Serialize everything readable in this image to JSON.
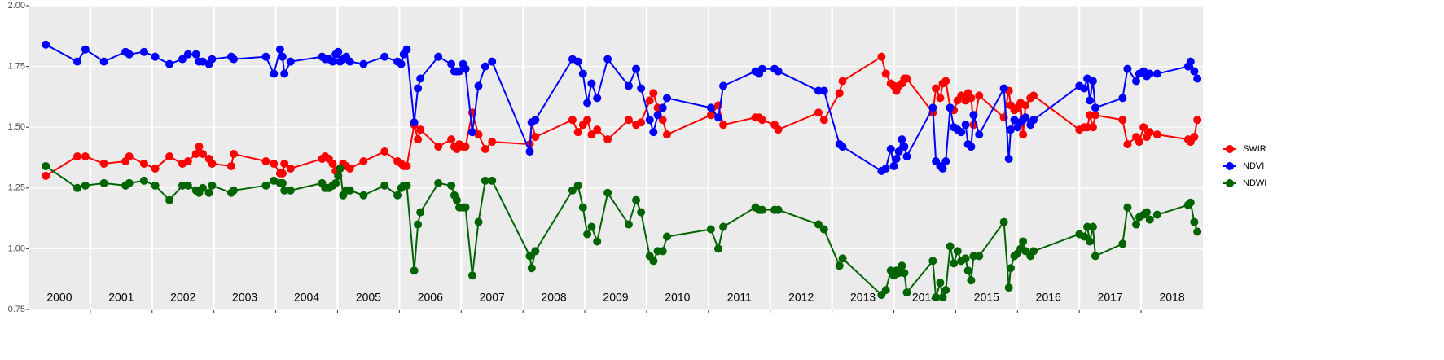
{
  "chart_data": {
    "type": "line",
    "x": [
      2000.28,
      2000.79,
      2000.92,
      2001.22,
      2001.57,
      2001.63,
      2001.87,
      2002.05,
      2002.28,
      2002.49,
      2002.58,
      2002.71,
      2002.76,
      2002.82,
      2002.92,
      2002.97,
      2003.28,
      2003.32,
      2003.84,
      2003.97,
      2004.07,
      2004.11,
      2004.14,
      2004.24,
      2004.75,
      2004.8,
      2004.86,
      2004.92,
      2004.97,
      2005.01,
      2005.04,
      2005.09,
      2005.14,
      2005.2,
      2005.42,
      2005.76,
      2005.97,
      2006.03,
      2006.07,
      2006.12,
      2006.24,
      2006.3,
      2006.34,
      2006.63,
      2006.84,
      2006.89,
      2006.93,
      2006.97,
      2007.03,
      2007.07,
      2007.18,
      2007.28,
      2007.39,
      2007.5,
      2008.11,
      2008.14,
      2008.2,
      2008.8,
      2008.89,
      2008.97,
      2009.04,
      2009.11,
      2009.2,
      2009.37,
      2009.71,
      2009.83,
      2009.91,
      2010.05,
      2010.11,
      2010.18,
      2010.26,
      2010.33,
      2011.04,
      2011.16,
      2011.24,
      2011.76,
      2011.82,
      2011.87,
      2012.07,
      2012.13,
      2012.78,
      2012.87,
      2013.12,
      2013.17,
      2013.8,
      2013.87,
      2013.95,
      2014.0,
      2014.04,
      2014.08,
      2014.13,
      2014.17,
      2014.21,
      2014.63,
      2014.68,
      2014.75,
      2014.79,
      2014.84,
      2014.91,
      2014.97,
      2015.03,
      2015.09,
      2015.16,
      2015.2,
      2015.25,
      2015.29,
      2015.38,
      2015.78,
      2015.86,
      2015.89,
      2015.95,
      2016.0,
      2016.05,
      2016.09,
      2016.13,
      2016.21,
      2016.26,
      2017.0,
      2017.08,
      2017.13,
      2017.17,
      2017.22,
      2017.26,
      2017.7,
      2017.78,
      2017.92,
      2017.97,
      2018.04,
      2018.09,
      2018.14,
      2018.26,
      2018.76,
      2018.8,
      2018.86,
      2018.91
    ],
    "series": [
      {
        "name": "SWIR",
        "color": "#ff0000",
        "values": [
          1.3,
          1.38,
          1.38,
          1.35,
          1.36,
          1.38,
          1.35,
          1.33,
          1.38,
          1.35,
          1.36,
          1.39,
          1.42,
          1.39,
          1.37,
          1.35,
          1.34,
          1.39,
          1.36,
          1.35,
          1.31,
          1.31,
          1.35,
          1.33,
          1.37,
          1.38,
          1.37,
          1.35,
          1.32,
          1.3,
          1.33,
          1.35,
          1.34,
          1.33,
          1.36,
          1.4,
          1.36,
          1.35,
          1.34,
          1.34,
          1.51,
          1.45,
          1.49,
          1.42,
          1.45,
          1.42,
          1.41,
          1.43,
          1.42,
          1.42,
          1.56,
          1.47,
          1.41,
          1.44,
          1.43,
          1.52,
          1.46,
          1.53,
          1.48,
          1.51,
          1.53,
          1.47,
          1.49,
          1.45,
          1.53,
          1.51,
          1.52,
          1.61,
          1.64,
          1.58,
          1.53,
          1.47,
          1.55,
          1.59,
          1.51,
          1.54,
          1.54,
          1.53,
          1.51,
          1.49,
          1.56,
          1.53,
          1.64,
          1.69,
          1.79,
          1.72,
          1.68,
          1.67,
          1.65,
          1.67,
          1.68,
          1.7,
          1.7,
          1.56,
          1.66,
          1.62,
          1.68,
          1.69,
          1.58,
          1.57,
          1.61,
          1.63,
          1.61,
          1.64,
          1.62,
          1.51,
          1.63,
          1.54,
          1.65,
          1.59,
          1.57,
          1.58,
          1.6,
          1.47,
          1.59,
          1.62,
          1.63,
          1.49,
          1.5,
          1.5,
          1.55,
          1.5,
          1.55,
          1.53,
          1.43,
          1.46,
          1.44,
          1.5,
          1.46,
          1.48,
          1.47,
          1.45,
          1.44,
          1.46,
          1.53
        ]
      },
      {
        "name": "NDVI",
        "color": "#0000ff",
        "values": [
          1.84,
          1.77,
          1.82,
          1.77,
          1.81,
          1.8,
          1.81,
          1.79,
          1.76,
          1.78,
          1.8,
          1.8,
          1.77,
          1.77,
          1.76,
          1.78,
          1.79,
          1.78,
          1.79,
          1.72,
          1.82,
          1.79,
          1.72,
          1.77,
          1.79,
          1.78,
          1.78,
          1.77,
          1.8,
          1.81,
          1.77,
          1.78,
          1.79,
          1.77,
          1.76,
          1.79,
          1.77,
          1.76,
          1.8,
          1.82,
          1.52,
          1.66,
          1.7,
          1.79,
          1.76,
          1.73,
          1.73,
          1.73,
          1.76,
          1.74,
          1.48,
          1.67,
          1.75,
          1.77,
          1.4,
          1.52,
          1.53,
          1.78,
          1.77,
          1.72,
          1.6,
          1.68,
          1.62,
          1.78,
          1.67,
          1.74,
          1.66,
          1.53,
          1.48,
          1.55,
          1.58,
          1.62,
          1.58,
          1.54,
          1.67,
          1.73,
          1.72,
          1.74,
          1.74,
          1.73,
          1.65,
          1.65,
          1.43,
          1.42,
          1.32,
          1.33,
          1.41,
          1.34,
          1.37,
          1.4,
          1.45,
          1.42,
          1.38,
          1.58,
          1.36,
          1.34,
          1.33,
          1.36,
          1.58,
          1.5,
          1.49,
          1.48,
          1.51,
          1.43,
          1.42,
          1.55,
          1.47,
          1.66,
          1.37,
          1.49,
          1.53,
          1.5,
          1.52,
          1.53,
          1.54,
          1.51,
          1.53,
          1.67,
          1.66,
          1.7,
          1.61,
          1.69,
          1.58,
          1.62,
          1.74,
          1.69,
          1.72,
          1.73,
          1.71,
          1.72,
          1.72,
          1.75,
          1.77,
          1.73,
          1.7
        ]
      },
      {
        "name": "NDWI",
        "color": "#006400",
        "values": [
          1.34,
          1.25,
          1.26,
          1.27,
          1.26,
          1.27,
          1.28,
          1.26,
          1.2,
          1.26,
          1.26,
          1.24,
          1.23,
          1.25,
          1.23,
          1.26,
          1.23,
          1.24,
          1.26,
          1.28,
          1.27,
          1.27,
          1.24,
          1.24,
          1.27,
          1.25,
          1.25,
          1.26,
          1.27,
          1.3,
          1.33,
          1.22,
          1.24,
          1.24,
          1.22,
          1.26,
          1.22,
          1.25,
          1.26,
          1.26,
          0.91,
          1.1,
          1.15,
          1.27,
          1.26,
          1.22,
          1.2,
          1.17,
          1.17,
          1.17,
          0.89,
          1.11,
          1.28,
          1.28,
          0.97,
          0.92,
          0.99,
          1.24,
          1.26,
          1.17,
          1.06,
          1.09,
          1.03,
          1.23,
          1.1,
          1.2,
          1.15,
          0.97,
          0.95,
          0.99,
          0.99,
          1.05,
          1.08,
          1.0,
          1.09,
          1.17,
          1.16,
          1.16,
          1.16,
          1.16,
          1.1,
          1.08,
          0.93,
          0.96,
          0.81,
          0.83,
          0.91,
          0.89,
          0.91,
          0.9,
          0.93,
          0.9,
          0.82,
          0.95,
          0.8,
          0.86,
          0.8,
          0.83,
          1.01,
          0.94,
          0.99,
          0.95,
          0.96,
          0.91,
          0.87,
          0.97,
          0.97,
          1.11,
          0.84,
          0.92,
          0.97,
          0.98,
          1.0,
          1.03,
          0.99,
          0.97,
          0.99,
          1.06,
          1.05,
          1.09,
          1.03,
          1.09,
          0.97,
          1.02,
          1.17,
          1.1,
          1.13,
          1.14,
          1.15,
          1.12,
          1.14,
          1.18,
          1.19,
          1.11,
          1.07
        ]
      }
    ],
    "year_labels": [
      "2000",
      "2001",
      "2002",
      "2003",
      "2004",
      "2005",
      "2006",
      "2007",
      "2008",
      "2009",
      "2010",
      "2011",
      "2012",
      "2013",
      "2014",
      "2015",
      "2016",
      "2017",
      "2018"
    ],
    "xlim": [
      2000,
      2019
    ],
    "xticks": [
      2001,
      2002,
      2003,
      2004,
      2005,
      2006,
      2007,
      2008,
      2009,
      2010,
      2011,
      2012,
      2013,
      2014,
      2015,
      2016,
      2017,
      2018
    ],
    "ylim": [
      0.75,
      2
    ],
    "yticks": [
      0.75,
      {
        "value": 1,
        "label": "1.00"
      },
      1.25,
      {
        "value": 1.5,
        "label": "1.50"
      },
      1.75,
      {
        "value": 2,
        "label": "2.00"
      }
    ],
    "grid": true,
    "legend": "right"
  }
}
